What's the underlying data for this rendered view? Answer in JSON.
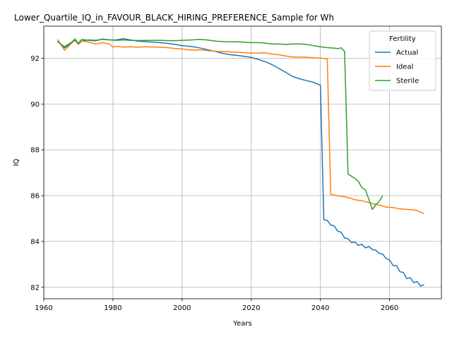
{
  "chart_data": {
    "type": "line",
    "title": "Lower_Quartile_IQ_in_FAVOUR_BLACK_HIRING_PREFERENCE_Sample for Wh",
    "xlabel": "Years",
    "ylabel": "IQ",
    "xlim": [
      1960,
      2075
    ],
    "ylim": [
      81.5,
      93.4
    ],
    "x_ticks": [
      1960,
      1980,
      2000,
      2020,
      2040,
      2060
    ],
    "y_ticks": [
      82,
      84,
      86,
      88,
      90,
      92
    ],
    "grid": true,
    "legend": {
      "title": "Fertility",
      "placement": "top-right"
    },
    "series": [
      {
        "name": "Actual",
        "color": "#1f77b4",
        "points": [
          [
            1964,
            92.75
          ],
          [
            1966,
            92.45
          ],
          [
            1968,
            92.65
          ],
          [
            1969,
            92.8
          ],
          [
            1970,
            92.6
          ],
          [
            1971,
            92.75
          ],
          [
            1973,
            92.8
          ],
          [
            1975,
            92.78
          ],
          [
            1977,
            92.82
          ],
          [
            1979,
            92.8
          ],
          [
            1981,
            92.8
          ],
          [
            1983,
            92.85
          ],
          [
            1985,
            92.8
          ],
          [
            1987,
            92.75
          ],
          [
            1990,
            92.72
          ],
          [
            1992,
            92.7
          ],
          [
            1995,
            92.66
          ],
          [
            1998,
            92.6
          ],
          [
            2000,
            92.55
          ],
          [
            2002,
            92.52
          ],
          [
            2004,
            92.48
          ],
          [
            2006,
            92.42
          ],
          [
            2008,
            92.35
          ],
          [
            2010,
            92.28
          ],
          [
            2012,
            92.2
          ],
          [
            2014,
            92.15
          ],
          [
            2016,
            92.12
          ],
          [
            2018,
            92.08
          ],
          [
            2020,
            92.03
          ],
          [
            2022,
            91.95
          ],
          [
            2024,
            91.85
          ],
          [
            2026,
            91.72
          ],
          [
            2028,
            91.55
          ],
          [
            2030,
            91.38
          ],
          [
            2032,
            91.2
          ],
          [
            2034,
            91.1
          ],
          [
            2036,
            91.02
          ],
          [
            2038,
            90.95
          ],
          [
            2039,
            90.88
          ],
          [
            2040,
            90.82
          ],
          [
            2041,
            84.95
          ],
          [
            2042,
            84.92
          ],
          [
            2043,
            84.72
          ],
          [
            2044,
            84.68
          ],
          [
            2045,
            84.45
          ],
          [
            2046,
            84.4
          ],
          [
            2047,
            84.15
          ],
          [
            2048,
            84.12
          ],
          [
            2049,
            83.95
          ],
          [
            2050,
            83.98
          ],
          [
            2051,
            83.82
          ],
          [
            2052,
            83.88
          ],
          [
            2053,
            83.72
          ],
          [
            2054,
            83.78
          ],
          [
            2055,
            83.65
          ],
          [
            2056,
            83.62
          ],
          [
            2057,
            83.48
          ],
          [
            2058,
            83.45
          ],
          [
            2059,
            83.25
          ],
          [
            2060,
            83.2
          ],
          [
            2061,
            82.95
          ],
          [
            2062,
            82.95
          ],
          [
            2063,
            82.68
          ],
          [
            2064,
            82.65
          ],
          [
            2065,
            82.38
          ],
          [
            2066,
            82.42
          ],
          [
            2067,
            82.2
          ],
          [
            2068,
            82.25
          ],
          [
            2069,
            82.05
          ],
          [
            2070,
            82.12
          ]
        ]
      },
      {
        "name": "Ideal",
        "color": "#ff7f0e",
        "points": [
          [
            1964,
            92.82
          ],
          [
            1966,
            92.35
          ],
          [
            1968,
            92.65
          ],
          [
            1969,
            92.85
          ],
          [
            1970,
            92.6
          ],
          [
            1971,
            92.75
          ],
          [
            1973,
            92.7
          ],
          [
            1975,
            92.62
          ],
          [
            1977,
            92.68
          ],
          [
            1979,
            92.62
          ],
          [
            1980,
            92.48
          ],
          [
            1981,
            92.52
          ],
          [
            1983,
            92.48
          ],
          [
            1985,
            92.5
          ],
          [
            1987,
            92.48
          ],
          [
            1990,
            92.5
          ],
          [
            1993,
            92.48
          ],
          [
            1996,
            92.46
          ],
          [
            1998,
            92.42
          ],
          [
            2000,
            92.4
          ],
          [
            2002,
            92.36
          ],
          [
            2004,
            92.36
          ],
          [
            2006,
            92.36
          ],
          [
            2008,
            92.32
          ],
          [
            2010,
            92.3
          ],
          [
            2013,
            92.28
          ],
          [
            2016,
            92.26
          ],
          [
            2018,
            92.24
          ],
          [
            2020,
            92.22
          ],
          [
            2022,
            92.22
          ],
          [
            2024,
            92.24
          ],
          [
            2026,
            92.18
          ],
          [
            2028,
            92.15
          ],
          [
            2030,
            92.1
          ],
          [
            2032,
            92.05
          ],
          [
            2034,
            92.05
          ],
          [
            2036,
            92.04
          ],
          [
            2038,
            92.02
          ],
          [
            2040,
            92.0
          ],
          [
            2042,
            91.98
          ],
          [
            2043,
            86.05
          ],
          [
            2045,
            86.0
          ],
          [
            2047,
            85.95
          ],
          [
            2049,
            85.88
          ],
          [
            2050,
            85.82
          ],
          [
            2052,
            85.78
          ],
          [
            2054,
            85.7
          ],
          [
            2056,
            85.62
          ],
          [
            2058,
            85.55
          ],
          [
            2059,
            85.5
          ],
          [
            2061,
            85.48
          ],
          [
            2063,
            85.42
          ],
          [
            2065,
            85.4
          ],
          [
            2067,
            85.38
          ],
          [
            2068,
            85.35
          ],
          [
            2069,
            85.28
          ],
          [
            2070,
            85.22
          ]
        ]
      },
      {
        "name": "Sterile",
        "color": "#2ca02c",
        "points": [
          [
            1964,
            92.72
          ],
          [
            1966,
            92.5
          ],
          [
            1968,
            92.7
          ],
          [
            1969,
            92.82
          ],
          [
            1970,
            92.65
          ],
          [
            1971,
            92.82
          ],
          [
            1973,
            92.78
          ],
          [
            1975,
            92.76
          ],
          [
            1977,
            92.84
          ],
          [
            1979,
            92.8
          ],
          [
            1981,
            92.78
          ],
          [
            1983,
            92.8
          ],
          [
            1985,
            92.78
          ],
          [
            1988,
            92.77
          ],
          [
            1991,
            92.78
          ],
          [
            1994,
            92.78
          ],
          [
            1997,
            92.76
          ],
          [
            2000,
            92.78
          ],
          [
            2003,
            92.8
          ],
          [
            2005,
            92.82
          ],
          [
            2007,
            92.8
          ],
          [
            2010,
            92.74
          ],
          [
            2013,
            92.72
          ],
          [
            2016,
            92.72
          ],
          [
            2018,
            92.7
          ],
          [
            2020,
            92.68
          ],
          [
            2022,
            92.68
          ],
          [
            2024,
            92.66
          ],
          [
            2026,
            92.62
          ],
          [
            2028,
            92.62
          ],
          [
            2030,
            92.6
          ],
          [
            2032,
            92.62
          ],
          [
            2034,
            92.62
          ],
          [
            2036,
            92.6
          ],
          [
            2038,
            92.55
          ],
          [
            2040,
            92.5
          ],
          [
            2042,
            92.46
          ],
          [
            2044,
            92.44
          ],
          [
            2045,
            92.42
          ],
          [
            2046,
            92.45
          ],
          [
            2047,
            92.3
          ],
          [
            2048,
            86.95
          ],
          [
            2050,
            86.75
          ],
          [
            2051,
            86.62
          ],
          [
            2052,
            86.35
          ],
          [
            2053,
            86.25
          ],
          [
            2054,
            85.85
          ],
          [
            2055,
            85.4
          ],
          [
            2056,
            85.6
          ],
          [
            2057,
            85.75
          ],
          [
            2058,
            86.0
          ]
        ]
      }
    ]
  }
}
